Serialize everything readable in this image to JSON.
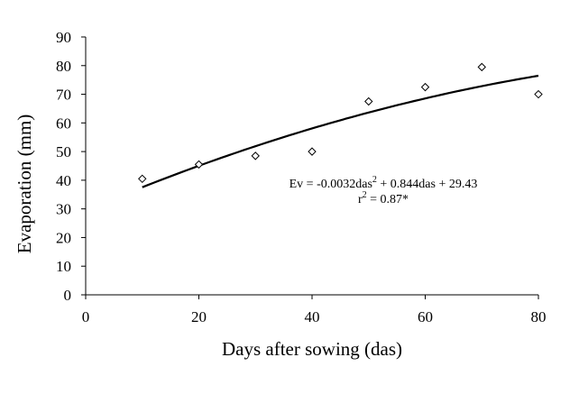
{
  "chart_data": {
    "type": "scatter",
    "title": "",
    "xlabel": "Days after sowing (das)",
    "ylabel": "Evaporation (mm)",
    "xlim": [
      0,
      80
    ],
    "ylim": [
      0,
      90
    ],
    "xticks": [
      0,
      20,
      40,
      60,
      80
    ],
    "yticks": [
      0,
      10,
      20,
      30,
      40,
      50,
      60,
      70,
      80,
      90
    ],
    "grid": false,
    "marker": "diamond-open",
    "points": [
      {
        "x": 10,
        "y": 40.5
      },
      {
        "x": 20,
        "y": 45.5
      },
      {
        "x": 30,
        "y": 48.5
      },
      {
        "x": 40,
        "y": 50.0
      },
      {
        "x": 50,
        "y": 67.5
      },
      {
        "x": 60,
        "y": 72.5
      },
      {
        "x": 70,
        "y": 79.5
      },
      {
        "x": 80,
        "y": 70.0
      }
    ],
    "trendline": {
      "type": "quadratic",
      "coefficients": {
        "a": -0.0032,
        "b": 0.844,
        "c": 29.43
      },
      "x_range": [
        10,
        80
      ]
    },
    "annotation": {
      "equation_prefix": "Ev = -0.0032das",
      "equation_sup": "2",
      "equation_suffix": " + 0.844das + 29.43",
      "r2_prefix": "r",
      "r2_sup": "2",
      "r2_suffix": " = 0.87*"
    }
  }
}
